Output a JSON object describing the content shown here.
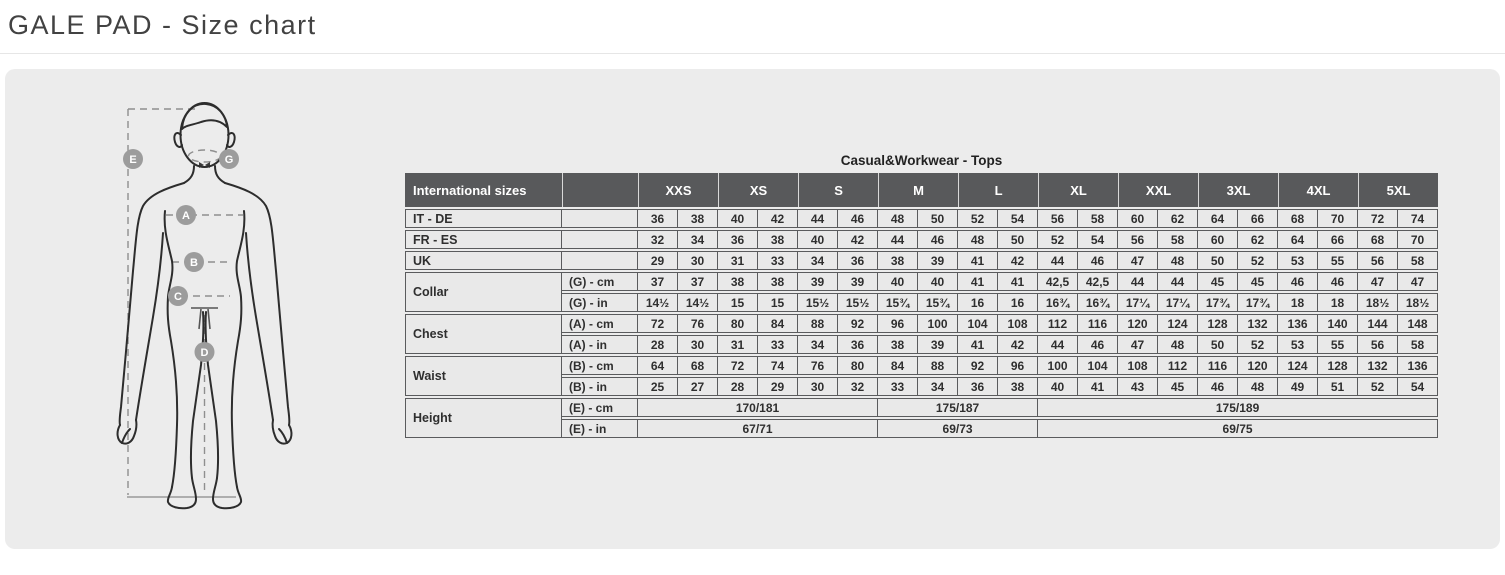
{
  "page": {
    "title": "GALE PAD - Size chart"
  },
  "colors": {
    "panel_bg": "#ececec",
    "header_bg": "#58595b",
    "header_text": "#ffffff",
    "cell_bg": "#e9e9e9",
    "cell_border": "#5a5b5d",
    "marker_bg": "#9c9c9c"
  },
  "figure": {
    "markers": [
      "E",
      "G",
      "A",
      "B",
      "C",
      "D"
    ]
  },
  "table": {
    "title": "Casual&Workwear - Tops",
    "header": {
      "corner": "International sizes",
      "corner2": "",
      "groups": [
        "XXS",
        "XS",
        "S",
        "M",
        "L",
        "XL",
        "XXL",
        "3XL",
        "4XL",
        "5XL"
      ]
    },
    "simple_rows": [
      {
        "label": "IT - DE",
        "values": [
          "36",
          "38",
          "40",
          "42",
          "44",
          "46",
          "48",
          "50",
          "52",
          "54",
          "56",
          "58",
          "60",
          "62",
          "64",
          "66",
          "68",
          "70",
          "72",
          "74"
        ]
      },
      {
        "label": "FR - ES",
        "values": [
          "32",
          "34",
          "36",
          "38",
          "40",
          "42",
          "44",
          "46",
          "48",
          "50",
          "52",
          "54",
          "56",
          "58",
          "60",
          "62",
          "64",
          "66",
          "68",
          "70"
        ]
      },
      {
        "label": "UK",
        "values": [
          "29",
          "30",
          "31",
          "33",
          "34",
          "36",
          "38",
          "39",
          "41",
          "42",
          "44",
          "46",
          "47",
          "48",
          "50",
          "52",
          "53",
          "55",
          "56",
          "58"
        ]
      }
    ],
    "measure_rows": [
      {
        "label": "Collar",
        "subrows": [
          {
            "sub": "(G) - cm",
            "values": [
              "37",
              "37",
              "38",
              "38",
              "39",
              "39",
              "40",
              "40",
              "41",
              "41",
              "42,5",
              "42,5",
              "44",
              "44",
              "45",
              "45",
              "46",
              "46",
              "47",
              "47"
            ]
          },
          {
            "sub": "(G)  - in",
            "values": [
              "14½",
              "14½",
              "15",
              "15",
              "15½",
              "15½",
              "15¾",
              "15¾",
              "16",
              "16",
              "16¾",
              "16¾",
              "17¼",
              "17¼",
              "17¾",
              "17¾",
              "18",
              "18",
              "18½",
              "18½"
            ]
          }
        ]
      },
      {
        "label": "Chest",
        "subrows": [
          {
            "sub": "(A) - cm",
            "values": [
              "72",
              "76",
              "80",
              "84",
              "88",
              "92",
              "96",
              "100",
              "104",
              "108",
              "112",
              "116",
              "120",
              "124",
              "128",
              "132",
              "136",
              "140",
              "144",
              "148"
            ]
          },
          {
            "sub": "(A) - in",
            "values": [
              "28",
              "30",
              "31",
              "33",
              "34",
              "36",
              "38",
              "39",
              "41",
              "42",
              "44",
              "46",
              "47",
              "48",
              "50",
              "52",
              "53",
              "55",
              "56",
              "58"
            ]
          }
        ]
      },
      {
        "label": "Waist",
        "subrows": [
          {
            "sub": "(B) - cm",
            "values": [
              "64",
              "68",
              "72",
              "74",
              "76",
              "80",
              "84",
              "88",
              "92",
              "96",
              "100",
              "104",
              "108",
              "112",
              "116",
              "120",
              "124",
              "128",
              "132",
              "136"
            ]
          },
          {
            "sub": "(B) - in",
            "values": [
              "25",
              "27",
              "28",
              "29",
              "30",
              "32",
              "33",
              "34",
              "36",
              "38",
              "40",
              "41",
              "43",
              "45",
              "46",
              "48",
              "49",
              "51",
              "52",
              "54"
            ]
          }
        ]
      },
      {
        "label": "Height",
        "subrows": [
          {
            "sub": "(E) - cm",
            "spans": [
              {
                "value": "170/181",
                "cols": 6
              },
              {
                "value": "175/187",
                "cols": 4
              },
              {
                "value": "175/189",
                "cols": 10
              }
            ]
          },
          {
            "sub": "(E) - in",
            "spans": [
              {
                "value": "67/71",
                "cols": 6
              },
              {
                "value": "69/73",
                "cols": 4
              },
              {
                "value": "69/75",
                "cols": 10
              }
            ]
          }
        ]
      }
    ]
  }
}
